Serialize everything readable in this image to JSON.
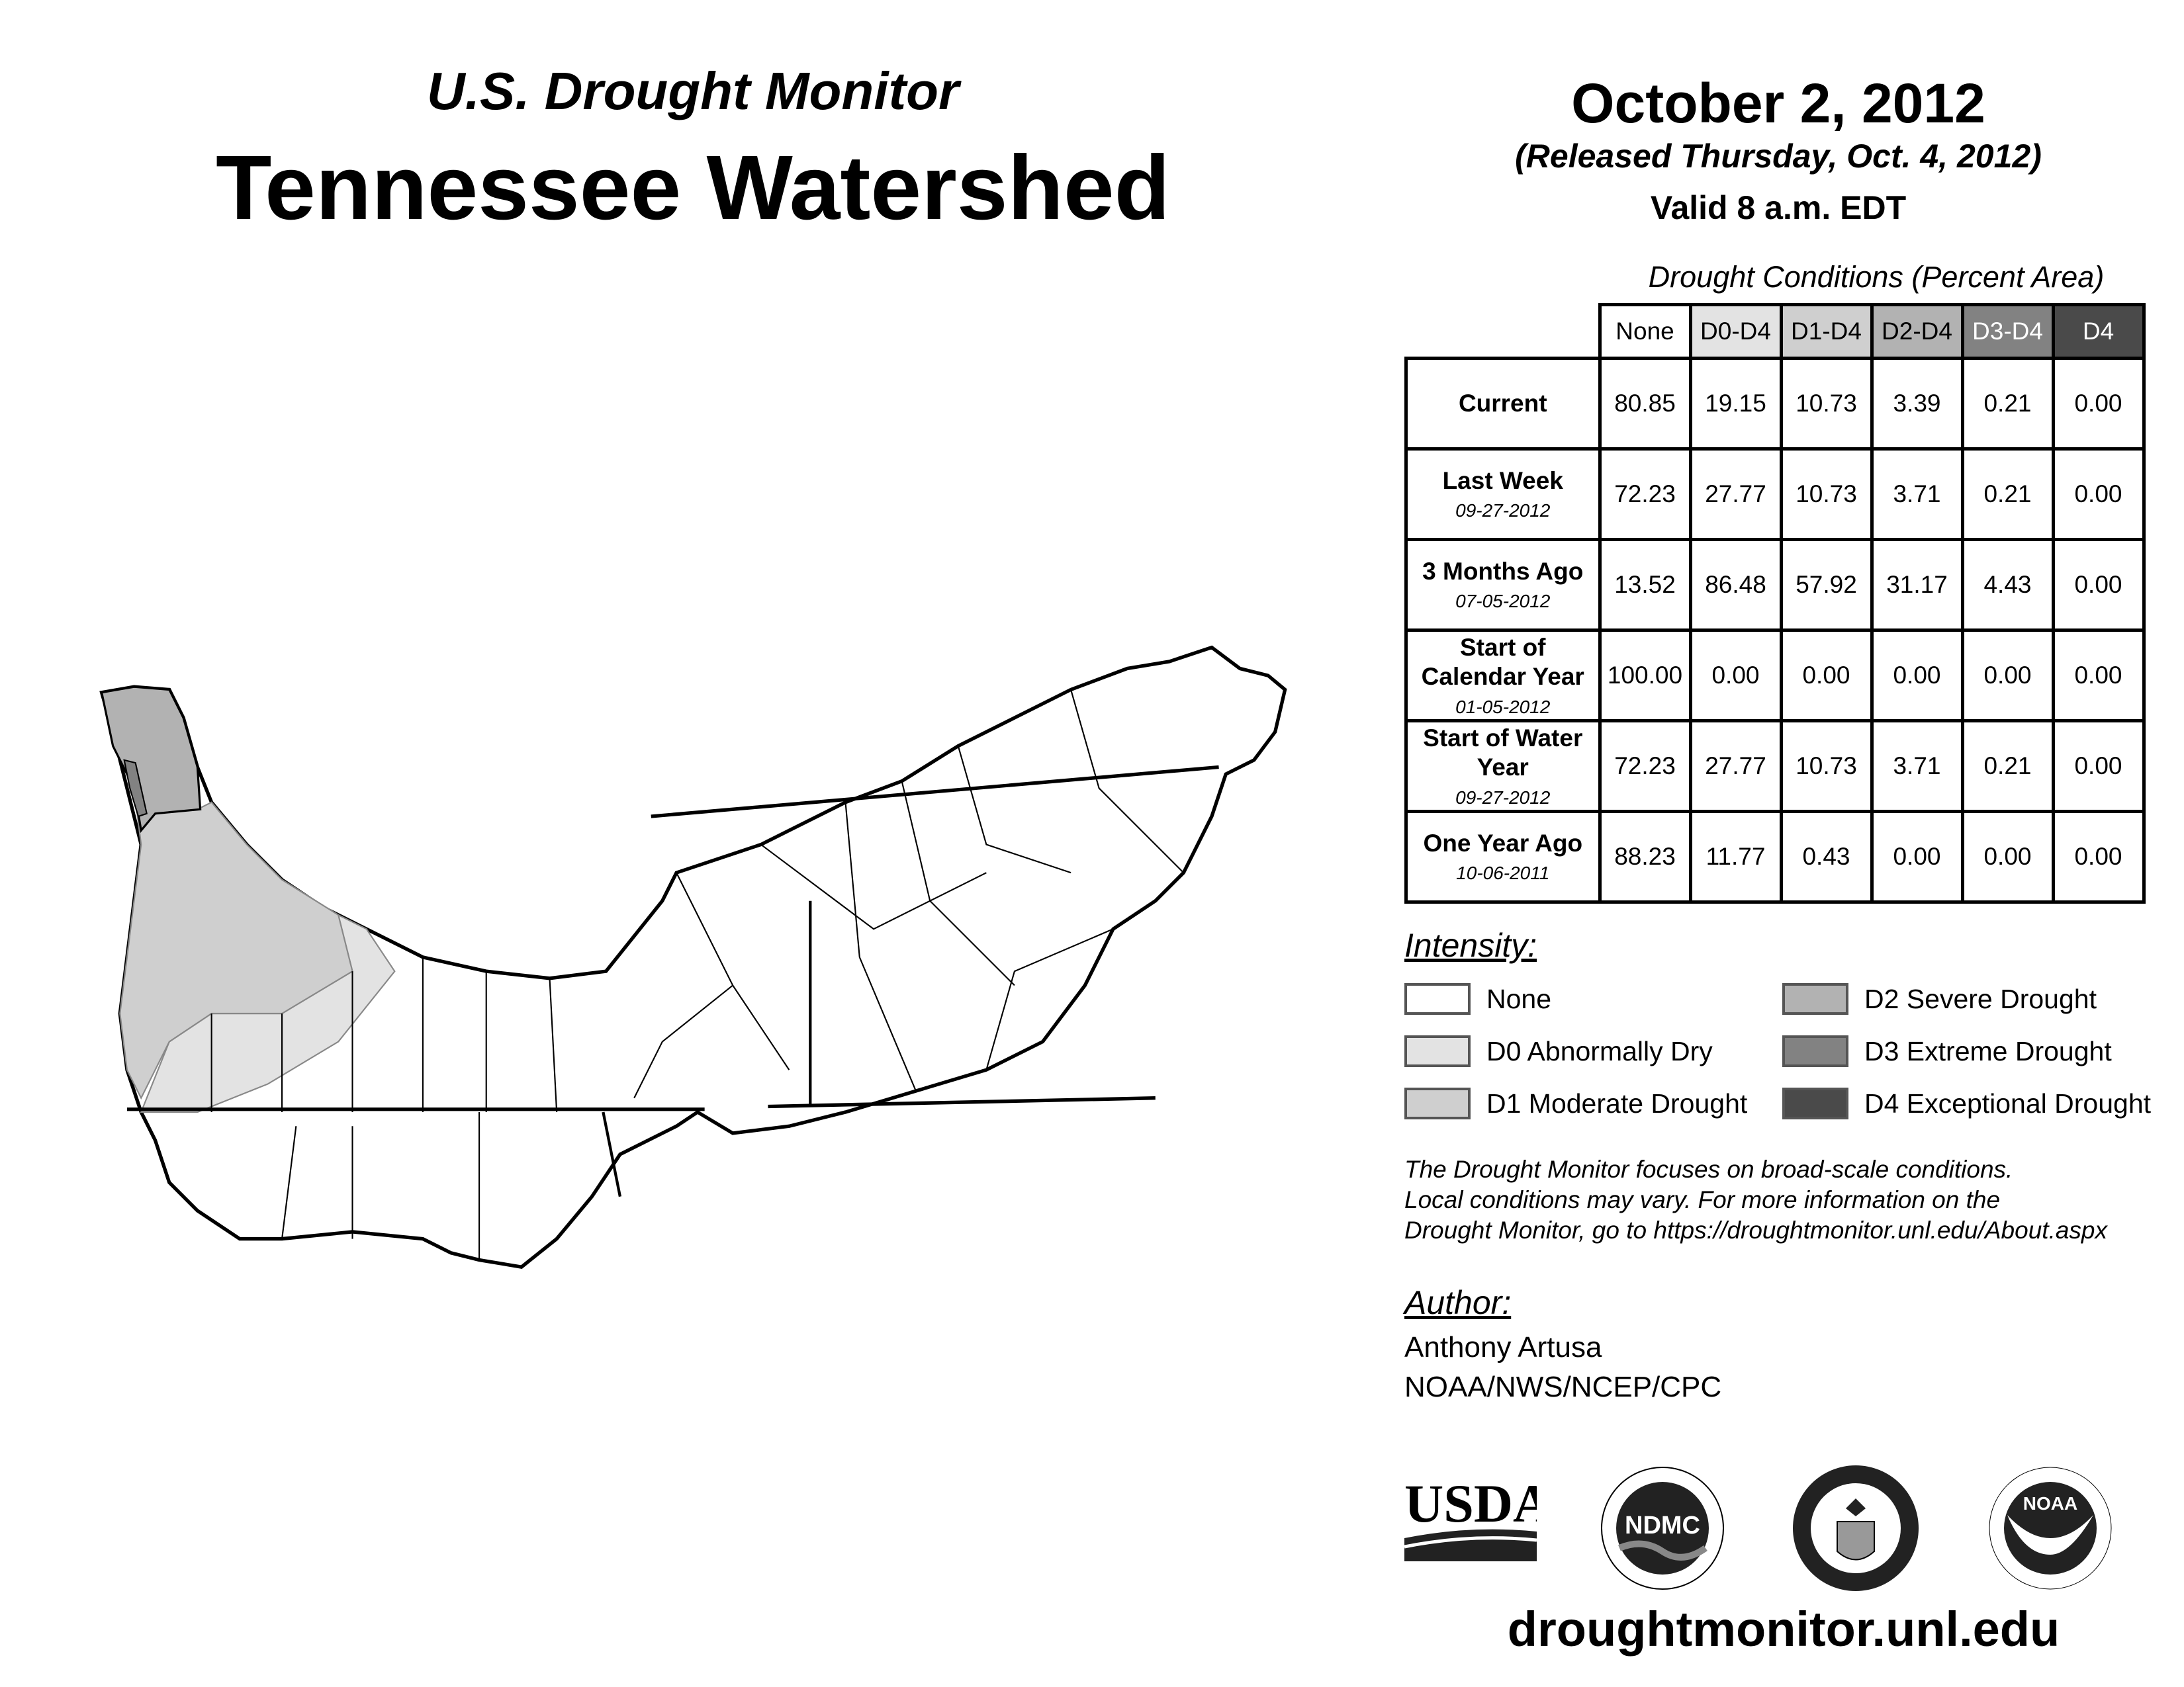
{
  "header": {
    "subtitle": "U.S. Drought Monitor",
    "title": "Tennessee Watershed",
    "date": "October 2, 2012",
    "released": "(Released Thursday, Oct. 4, 2012)",
    "valid": "Valid 8 a.m. EDT"
  },
  "table": {
    "caption": "Drought Conditions (Percent Area)",
    "columns": [
      "None",
      "D0-D4",
      "D1-D4",
      "D2-D4",
      "D3-D4",
      "D4"
    ],
    "column_colors": [
      "#ffffff",
      "#e3e3e3",
      "#cfcfcf",
      "#b2b2b2",
      "#828282",
      "#4a4a4a"
    ],
    "rows": [
      {
        "label": "Current",
        "date": "",
        "values": [
          "80.85",
          "19.15",
          "10.73",
          "3.39",
          "0.21",
          "0.00"
        ]
      },
      {
        "label": "Last Week",
        "date": "09-27-2012",
        "values": [
          "72.23",
          "27.77",
          "10.73",
          "3.71",
          "0.21",
          "0.00"
        ]
      },
      {
        "label": "3 Months Ago",
        "date": "07-05-2012",
        "values": [
          "13.52",
          "86.48",
          "57.92",
          "31.17",
          "4.43",
          "0.00"
        ]
      },
      {
        "label": "Start of Calendar Year",
        "date": "01-05-2012",
        "values": [
          "100.00",
          "0.00",
          "0.00",
          "0.00",
          "0.00",
          "0.00"
        ]
      },
      {
        "label": "Start of Water Year",
        "date": "09-27-2012",
        "values": [
          "72.23",
          "27.77",
          "10.73",
          "3.71",
          "0.21",
          "0.00"
        ]
      },
      {
        "label": "One Year Ago",
        "date": "10-06-2011",
        "values": [
          "88.23",
          "11.77",
          "0.43",
          "0.00",
          "0.00",
          "0.00"
        ]
      }
    ]
  },
  "legend": {
    "title": "Intensity:",
    "items": [
      {
        "label": "None",
        "color": "#ffffff"
      },
      {
        "label": "D0 Abnormally Dry",
        "color": "#e3e3e3"
      },
      {
        "label": "D1 Moderate Drought",
        "color": "#cfcfcf"
      },
      {
        "label": "D2 Severe Drought",
        "color": "#b2b2b2"
      },
      {
        "label": "D3 Extreme Drought",
        "color": "#828282"
      },
      {
        "label": "D4 Exceptional Drought",
        "color": "#4a4a4a"
      }
    ]
  },
  "disclaimer": [
    "The Drought Monitor focuses on broad-scale conditions.",
    "Local conditions may vary. For more information on the",
    "Drought Monitor, go to https://droughtmonitor.unl.edu/About.aspx"
  ],
  "author": {
    "label": "Author:",
    "name": "Anthony Artusa",
    "org": "NOAA/NWS/NCEP/CPC"
  },
  "logos": {
    "usda": "USDA",
    "ndmc": "NDMC",
    "doc": "DEPARTMENT OF COMMERCE",
    "noaa": "NOAA"
  },
  "footer": {
    "url": "droughtmonitor.unl.edu"
  }
}
